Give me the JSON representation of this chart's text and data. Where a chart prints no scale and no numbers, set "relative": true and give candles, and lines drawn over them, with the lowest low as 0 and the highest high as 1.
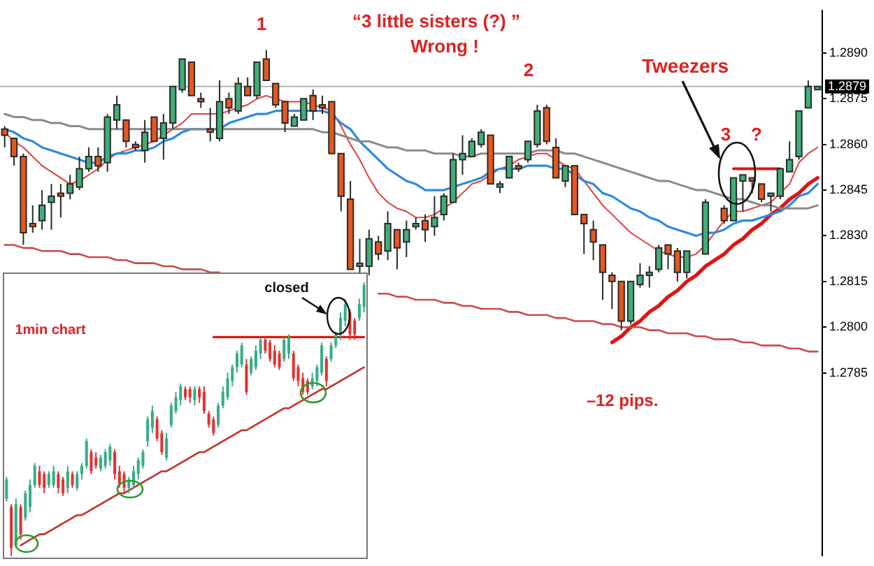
{
  "chart_data": [
    {
      "type": "candlestick",
      "categories": [
        null,
        null,
        null,
        null,
        null,
        null,
        null,
        null,
        null,
        null,
        null,
        null,
        null,
        null,
        null,
        null,
        null,
        null,
        null,
        null,
        null,
        null,
        null,
        null,
        null,
        null,
        null,
        null,
        null,
        null,
        null,
        null,
        null,
        null,
        null,
        null,
        null,
        null,
        null,
        null,
        null,
        null,
        null,
        null,
        null,
        null,
        null,
        null,
        null,
        null,
        null,
        null,
        null,
        null,
        null,
        null,
        null,
        null,
        null,
        null,
        null,
        null,
        null,
        null,
        null,
        null,
        null,
        null,
        null,
        null,
        null,
        null,
        null,
        null,
        null,
        null,
        null,
        null,
        null,
        null,
        null,
        null,
        null,
        null,
        null,
        null,
        null,
        null
      ],
      "colors": [
        "#e8571e",
        "#e8571e",
        "#e8571e",
        "#e8571e",
        "#3fae78",
        "#3fae78",
        "#e8571e",
        "#3fae78",
        "#3fae78",
        "#3fae78",
        "#e8571e",
        "#3fae78",
        "#3fae78",
        "#e8571e",
        "#e8571e",
        "#3fae78",
        "#e8571e",
        "#3fae78",
        "#3fae78",
        "#3fae78",
        "#e8571e",
        "#e8571e",
        "#e8571e",
        "#3fae78",
        "#e8571e",
        "#3fae78",
        "#e8571e",
        "#3fae78",
        "#e8571e",
        "#e8571e",
        "#e8571e",
        "#3fae78",
        "#3fae78",
        "#e8571e",
        "#e8571e",
        "#e8571e",
        "#e8571e",
        "#e8571e",
        "#3fae78",
        "#3fae78",
        "#e8571e",
        "#3fae78",
        "#e8571e",
        "#3fae78",
        "#3fae78",
        "#e8571e",
        "#3fae78",
        "#3fae78",
        "#3fae78",
        "#3fae78",
        "#3fae78",
        "#3fae78",
        "#e8571e",
        "#3fae78",
        "#3fae78",
        "#e8571e",
        "#3fae78",
        "#3fae78",
        "#e8571e",
        "#e8571e",
        "#3fae78",
        "#e8571e",
        "#e8571e",
        "#e8571e",
        "#e8571e",
        "#e8571e",
        "#e8571e",
        "#3fae78",
        "#3fae78",
        "#3fae78",
        "#3fae78",
        "#e8571e",
        "#e8571e",
        "#3fae78",
        null,
        "#3fae78",
        null,
        "#e8571e",
        "#3fae78",
        "#3fae78",
        "#e8571e",
        "#e8571e",
        "#3fae78",
        "#3fae78",
        "#3fae78",
        "#3fae78",
        "#3fae78",
        "#3fae78"
      ],
      "ohlc": [
        [
          1.2865,
          1.2866,
          1.2859,
          1.2863
        ],
        [
          1.2862,
          1.2862,
          1.2853,
          1.2856
        ],
        [
          1.2856,
          1.2857,
          1.2827,
          1.2831
        ],
        [
          1.2834,
          1.284,
          1.2831,
          1.2833
        ],
        [
          1.2835,
          1.2845,
          1.2832,
          1.284
        ],
        [
          1.2841,
          1.2847,
          1.2832,
          1.2843
        ],
        [
          1.2844,
          1.2847,
          1.2836,
          1.2843
        ],
        [
          1.2844,
          1.285,
          1.2842,
          1.2847
        ],
        [
          1.2846,
          1.2856,
          1.2845,
          1.2852
        ],
        [
          1.2852,
          1.2859,
          1.2851,
          1.2856
        ],
        [
          1.2856,
          1.2859,
          1.2851,
          1.2853
        ],
        [
          1.2854,
          1.287,
          1.2851,
          1.2869
        ],
        [
          1.2868,
          1.2876,
          1.2865,
          1.2873
        ],
        [
          1.2868,
          1.2868,
          1.2859,
          1.2861
        ],
        [
          1.286,
          1.2861,
          1.2858,
          1.2859
        ],
        [
          1.2858,
          1.2868,
          1.2854,
          1.2864
        ],
        [
          1.2869,
          1.2869,
          1.2861,
          1.2861
        ],
        [
          1.2862,
          1.287,
          1.2855,
          1.2867
        ],
        [
          1.2867,
          1.2879,
          1.2865,
          1.2879
        ],
        [
          1.2878,
          1.2888,
          1.2877,
          1.2888
        ],
        [
          1.2887,
          1.2887,
          1.2876,
          1.2876
        ],
        [
          1.2875,
          1.2877,
          1.2872,
          1.2874
        ],
        [
          1.2865,
          1.2872,
          1.2861,
          1.2864
        ],
        [
          1.2862,
          1.2881,
          1.2861,
          1.2874
        ],
        [
          1.2875,
          1.2877,
          1.287,
          1.2872
        ],
        [
          1.2871,
          1.2882,
          1.287,
          1.288
        ],
        [
          1.2879,
          1.2882,
          1.2876,
          1.2876
        ],
        [
          1.2876,
          1.2887,
          1.2875,
          1.2887
        ],
        [
          1.2888,
          1.2891,
          1.2881,
          1.2881
        ],
        [
          1.288,
          1.288,
          1.2872,
          1.2873
        ],
        [
          1.2874,
          1.2874,
          1.2864,
          1.2867
        ],
        [
          1.2866,
          1.287,
          1.2866,
          1.2869
        ],
        [
          1.2868,
          1.2875,
          1.2868,
          1.2875
        ],
        [
          1.2876,
          1.2878,
          1.2868,
          1.2871
        ],
        [
          1.2873,
          1.2876,
          1.287,
          1.2872
        ],
        [
          1.2874,
          1.2874,
          1.2857,
          1.2857
        ],
        [
          1.2857,
          1.2857,
          1.2838,
          1.2843
        ],
        [
          1.2842,
          1.2848,
          1.2819,
          1.2819
        ],
        [
          1.282,
          1.2829,
          1.2817,
          1.2821
        ],
        [
          1.282,
          1.2832,
          1.2817,
          1.2829
        ],
        [
          1.2828,
          1.283,
          1.2822,
          1.2824
        ],
        [
          1.2825,
          1.2838,
          1.2822,
          1.2834
        ],
        [
          1.2832,
          1.2832,
          1.2819,
          1.2826
        ],
        [
          1.2828,
          1.2835,
          1.2823,
          1.2832
        ],
        [
          1.2833,
          1.2836,
          1.2832,
          1.2834
        ],
        [
          1.2835,
          1.2837,
          1.2828,
          1.2832
        ],
        [
          1.2833,
          1.2843,
          1.283,
          1.2836
        ],
        [
          1.2837,
          1.2844,
          1.2835,
          1.2843
        ],
        [
          1.2841,
          1.2857,
          1.2841,
          1.2855
        ],
        [
          1.2855,
          1.2863,
          1.285,
          1.2857
        ],
        [
          1.2856,
          1.2862,
          1.2856,
          1.2861
        ],
        [
          1.286,
          1.2865,
          1.2859,
          1.2864
        ],
        [
          1.2863,
          1.2863,
          1.2847,
          1.2847
        ],
        [
          1.2846,
          1.2848,
          1.2844,
          1.2847
        ],
        [
          1.2849,
          1.2856,
          1.2849,
          1.2856
        ],
        [
          1.2853,
          1.2854,
          1.2851,
          1.2852
        ],
        [
          1.2855,
          1.2861,
          1.2854,
          1.2861
        ],
        [
          1.286,
          1.2873,
          1.2859,
          1.2871
        ],
        [
          1.2872,
          1.2873,
          1.286,
          1.2861
        ],
        [
          1.2859,
          1.2862,
          1.2849,
          1.2849
        ],
        [
          1.2848,
          1.2853,
          1.2846,
          1.2853
        ],
        [
          1.2853,
          1.2853,
          1.2837,
          1.2837
        ],
        [
          1.2837,
          1.2837,
          1.2824,
          1.2834
        ],
        [
          1.2832,
          1.2835,
          1.2822,
          1.2828
        ],
        [
          1.2827,
          1.2827,
          1.2809,
          1.2818
        ],
        [
          1.2817,
          1.2818,
          1.2806,
          1.2815
        ],
        [
          1.2815,
          1.2815,
          1.2799,
          1.2802
        ],
        [
          1.2802,
          1.2815,
          1.2801,
          1.2815
        ],
        [
          1.2814,
          1.2821,
          1.2813,
          1.2817
        ],
        [
          1.2817,
          1.282,
          1.2813,
          1.2818
        ],
        [
          1.2819,
          1.2827,
          1.2818,
          1.2826
        ],
        [
          1.2827,
          1.2827,
          1.2819,
          1.2824
        ],
        [
          1.2825,
          1.2826,
          1.2815,
          1.2818
        ],
        [
          1.2818,
          1.2825,
          1.2816,
          1.2825
        ],
        null,
        [
          1.2824,
          1.2842,
          1.2824,
          1.2841
        ],
        null,
        [
          1.2839,
          1.284,
          1.2834,
          1.2835
        ],
        [
          1.2835,
          1.2849,
          1.2835,
          1.2849
        ],
        [
          1.2848,
          1.285,
          1.2838,
          1.285
        ],
        [
          1.2849,
          1.2849,
          1.2844,
          1.2848
        ],
        [
          1.2847,
          1.2847,
          1.2841,
          1.2842
        ],
        [
          1.2843,
          1.2844,
          1.2838,
          1.2844
        ],
        [
          1.2843,
          1.2852,
          1.2842,
          1.2852
        ],
        [
          1.2851,
          1.2861,
          1.2851,
          1.2855
        ],
        [
          1.2856,
          1.2871,
          1.2855,
          1.2871
        ],
        [
          1.2872,
          1.2881,
          1.2872,
          1.2879
        ],
        [
          1.2878,
          1.2879,
          1.2878,
          1.2879
        ]
      ],
      "series": [
        {
          "type": "line",
          "color": "#8a8a8a",
          "values": [
            1.287,
            1.2869,
            1.2869,
            1.2868,
            1.2868,
            1.2867,
            1.2867,
            1.2866,
            1.2866,
            1.2865,
            1.2865,
            1.2865,
            1.2865,
            1.2865,
            1.2865,
            1.2865,
            1.2865,
            1.2865,
            1.2865,
            1.2865,
            1.2865,
            1.2865,
            1.2865,
            1.2865,
            1.2865,
            1.2865,
            1.2865,
            1.2865,
            1.2865,
            1.2865,
            1.2865,
            1.2865,
            1.2865,
            1.2865,
            1.2864,
            1.2864,
            1.2863,
            1.2862,
            1.2861,
            1.2861,
            1.286,
            1.2859,
            1.2859,
            1.2858,
            1.2858,
            1.2858,
            1.2857,
            1.2857,
            1.2857,
            1.2856,
            1.2856,
            1.2857,
            1.2857,
            1.2857,
            1.2857,
            1.2857,
            1.2857,
            1.2858,
            1.2858,
            1.2858,
            1.2857,
            1.2857,
            1.2856,
            1.2855,
            1.2854,
            1.2853,
            1.2852,
            1.2851,
            1.285,
            1.2849,
            1.2848,
            1.2848,
            1.2847,
            1.2846,
            1.2845,
            1.2845,
            1.2844,
            1.2843,
            1.2842,
            1.2842,
            1.2841,
            1.284,
            1.284,
            1.2839,
            1.2839,
            1.2839,
            1.2839,
            1.284
          ]
        },
        {
          "type": "line",
          "color": "#2b8ae2",
          "values": [
            1.2865,
            1.2864,
            1.2862,
            1.2861,
            1.2859,
            1.2858,
            1.2857,
            1.2856,
            1.2855,
            1.2854,
            1.2854,
            1.2856,
            1.2857,
            1.2857,
            1.2858,
            1.2858,
            1.2859,
            1.2861,
            1.2862,
            1.2864,
            1.2865,
            1.2865,
            1.2865,
            1.2865,
            1.2867,
            1.2868,
            1.2869,
            1.287,
            1.287,
            1.2871,
            1.2871,
            1.2871,
            1.2871,
            1.2871,
            1.2871,
            1.287,
            1.2867,
            1.2865,
            1.2861,
            1.2858,
            1.2855,
            1.2852,
            1.285,
            1.2848,
            1.2847,
            1.2845,
            1.2845,
            1.2845,
            1.2846,
            1.2847,
            1.2848,
            1.2849,
            1.2851,
            1.2852,
            1.2852,
            1.2852,
            1.2853,
            1.2853,
            1.2853,
            1.2852,
            1.2852,
            1.285,
            1.2848,
            1.2847,
            1.2844,
            1.2843,
            1.2841,
            1.2839,
            1.2838,
            1.2836,
            1.2835,
            1.2833,
            1.2832,
            1.2831,
            1.283,
            1.2831,
            1.2831,
            1.2832,
            1.2834,
            1.2835,
            1.2835,
            1.2836,
            1.2837,
            1.2838,
            1.284,
            1.2843,
            1.2844,
            1.2847
          ]
        },
        {
          "type": "line",
          "color": "#e0403a",
          "values": [
            1.2864,
            1.2861,
            1.2859,
            1.2856,
            1.2853,
            1.2851,
            1.2849,
            1.2847,
            1.2848,
            1.285,
            1.2852,
            1.2855,
            1.2857,
            1.2858,
            1.2859,
            1.286,
            1.2861,
            1.2863,
            1.2865,
            1.2867,
            1.287,
            1.287,
            1.287,
            1.287,
            1.2871,
            1.2872,
            1.2873,
            1.2875,
            1.2876,
            1.2875,
            1.2874,
            1.2874,
            1.2874,
            1.2873,
            1.2872,
            1.2871,
            1.2866,
            1.286,
            1.2855,
            1.2849,
            1.2844,
            1.2841,
            1.2839,
            1.2838,
            1.2836,
            1.2836,
            1.2837,
            1.2839,
            1.2841,
            1.2844,
            1.2847,
            1.2848,
            1.285,
            1.2852,
            1.2853,
            1.2855,
            1.2856,
            1.2857,
            1.2857,
            1.2855,
            1.2853,
            1.2852,
            1.2848,
            1.2844,
            1.284,
            1.2837,
            1.2834,
            1.2831,
            1.2829,
            1.2827,
            1.2825,
            1.2824,
            1.2823,
            1.2823,
            1.2824,
            1.2827,
            1.2831,
            1.2835,
            1.2838,
            1.2838,
            1.2839,
            1.284,
            1.2841,
            1.2844,
            1.2847,
            1.2854,
            1.2857,
            1.2859
          ]
        },
        {
          "type": "line",
          "color": "#cc4a4a",
          "values": [
            1.2827,
            1.2827,
            1.2826,
            1.2826,
            1.2825,
            1.2825,
            1.2825,
            1.2824,
            1.2824,
            1.2823,
            1.2823,
            1.2823,
            1.2822,
            1.2822,
            1.2821,
            1.2821,
            1.2821,
            1.282,
            1.282,
            1.2819,
            1.2819,
            1.2819,
            1.2818,
            1.2818,
            null,
            null,
            null,
            null,
            null,
            null,
            null,
            null,
            null,
            null,
            null,
            null,
            null,
            null,
            null,
            null,
            1.2811,
            1.2811,
            1.281,
            1.281,
            1.2809,
            1.2809,
            1.2809,
            1.2808,
            1.2808,
            1.2807,
            1.2807,
            1.2806,
            1.2806,
            1.2806,
            1.2805,
            1.2805,
            1.2804,
            1.2804,
            1.2804,
            1.2803,
            1.2803,
            1.2802,
            1.2802,
            1.2802,
            1.2801,
            1.2801,
            1.28,
            1.28,
            1.28,
            1.2799,
            1.2799,
            1.2798,
            1.2798,
            1.2798,
            1.2797,
            1.2797,
            1.2796,
            1.2796,
            1.2796,
            1.2795,
            1.2795,
            1.2794,
            1.2794,
            1.2794,
            1.2793,
            1.2793,
            1.2792,
            1.2792
          ]
        },
        {
          "type": "line",
          "color": "#e01414",
          "values": [
            null,
            null,
            null,
            null,
            null,
            null,
            null,
            null,
            null,
            null,
            null,
            null,
            null,
            null,
            null,
            null,
            null,
            null,
            null,
            null,
            null,
            null,
            null,
            null,
            null,
            null,
            null,
            null,
            null,
            null,
            null,
            null,
            null,
            null,
            null,
            null,
            null,
            null,
            null,
            null,
            null,
            null,
            null,
            null,
            null,
            null,
            null,
            null,
            null,
            null,
            null,
            null,
            null,
            null,
            null,
            null,
            null,
            null,
            null,
            null,
            null,
            null,
            null,
            null,
            null,
            1.2795,
            1.2797,
            1.28,
            1.2802,
            1.2805,
            1.2807,
            1.281,
            1.2812,
            1.2815,
            1.2817,
            1.282,
            1.2822,
            1.2824,
            1.2827,
            1.2829,
            1.2832,
            1.2834,
            1.2837,
            1.2839,
            1.2842,
            1.2844,
            1.2847,
            1.2849
          ]
        },
        {
          "type": "line",
          "color": "#e01414",
          "values": [
            null,
            null,
            null,
            null,
            null,
            null,
            null,
            null,
            null,
            null,
            null,
            null,
            null,
            null,
            null,
            null,
            null,
            null,
            null,
            null,
            null,
            null,
            null,
            null,
            null,
            null,
            null,
            null,
            null,
            null,
            null,
            null,
            null,
            null,
            null,
            null,
            null,
            null,
            null,
            null,
            null,
            null,
            null,
            null,
            null,
            null,
            null,
            null,
            null,
            null,
            null,
            null,
            null,
            null,
            null,
            null,
            null,
            null,
            null,
            null,
            null,
            null,
            null,
            null,
            null,
            null,
            null,
            null,
            null,
            null,
            null,
            null,
            null,
            null,
            null,
            null,
            null,
            null,
            1.2852,
            1.2852,
            1.2852,
            1.2852,
            1.2852,
            1.2852,
            null,
            null,
            null,
            null
          ]
        }
      ],
      "ylim": [
        1.2725,
        1.2904
      ],
      "yticks": [
        {
          "value": 1.2785,
          "label": "1.2785"
        },
        {
          "value": 1.28,
          "label": "1.2800"
        },
        {
          "value": 1.2815,
          "label": "1.2815"
        },
        {
          "value": 1.283,
          "label": "1.2830"
        },
        {
          "value": 1.2845,
          "label": "1.2845"
        },
        {
          "value": 1.286,
          "label": "1.2860"
        },
        {
          "value": 1.2875,
          "label": "1.2875"
        },
        {
          "value": 1.289,
          "label": "1.2890"
        }
      ],
      "ref_lines": [
        {
          "axis": "y",
          "value": 1.2879,
          "label": "1.2879",
          "color": "#b4b4b4"
        }
      ],
      "tick_labels": "y",
      "annotations": [
        "1",
        "“3 little sisters (?) ”",
        "Wrong !",
        "2",
        "Tweezers",
        "3",
        "?",
        "–12 pips."
      ]
    },
    {
      "type": "candlestick",
      "relative": true,
      "categories": [
        null,
        null,
        null,
        null,
        null,
        null,
        null,
        null,
        null,
        null,
        null,
        null,
        null,
        null,
        null,
        null,
        null,
        null,
        null,
        null,
        null,
        null,
        null,
        null,
        null,
        null,
        null,
        null,
        null,
        null,
        null,
        null,
        null,
        null,
        null,
        null,
        null,
        null,
        null,
        null,
        null,
        null,
        null,
        null,
        null,
        null,
        null,
        null,
        null,
        null,
        null,
        null,
        null,
        null,
        null,
        null,
        null,
        null,
        null,
        null,
        null,
        null,
        null,
        null,
        null,
        null,
        null,
        null,
        null,
        null,
        null,
        null,
        null,
        null,
        null,
        null,
        null
      ],
      "colors": [
        "#35ad86",
        "#e23232",
        "#35ad86",
        "#e23232",
        "#35ad86",
        "#35ad86",
        "#35ad86",
        "#e23232",
        "#e23232",
        "#35ad86",
        "#35ad86",
        "#e23232",
        "#e23232",
        "#35ad86",
        "#e23232",
        "#35ad86",
        "#35ad86",
        "#35ad86",
        "#e23232",
        "#e23232",
        "#35ad86",
        "#35ad86",
        "#35ad86",
        "#e23232",
        "#e23232",
        "#e23232",
        "#35ad86",
        "#35ad86",
        "#35ad86",
        "#35ad86",
        "#35ad86",
        "#35ad86",
        "#e23232",
        "#e23232",
        "#35ad86",
        "#35ad86",
        "#35ad86",
        "#35ad86",
        "#e23232",
        "#e23232",
        "#35ad86",
        "#e23232",
        "#e23232",
        "#e23232",
        "#e23232",
        "#35ad86",
        "#35ad86",
        "#35ad86",
        "#35ad86",
        "#35ad86",
        "#35ad86",
        "#e23232",
        "#35ad86",
        "#35ad86",
        "#35ad86",
        "#e23232",
        "#e23232",
        "#e23232",
        "#e23232",
        "#35ad86",
        "#35ad86",
        "#e23232",
        "#e23232",
        "#e23232",
        "#e23232",
        "#35ad86",
        "#35ad86",
        "#35ad86",
        "#e23232",
        "#35ad86",
        "#35ad86",
        "#35ad86",
        "#35ad86",
        "#e23232",
        "#e23232",
        "#35ad86",
        "#35ad86"
      ],
      "ohlc": [
        [
          0.21,
          0.29,
          0.2,
          0.28
        ],
        [
          0.18,
          0.19,
          0,
          0.03
        ],
        [
          0.04,
          0.21,
          0.03,
          0.19
        ],
        [
          0.18,
          0.19,
          0.06,
          0.08
        ],
        [
          0.14,
          0.24,
          0.13,
          0.23
        ],
        [
          0.18,
          0.28,
          0.16,
          0.26
        ],
        [
          0.26,
          0.34,
          0.25,
          0.33
        ],
        [
          0.31,
          0.33,
          0.25,
          0.26
        ],
        [
          0.3,
          0.31,
          0.23,
          0.25
        ],
        [
          0.26,
          0.31,
          0.25,
          0.3
        ],
        [
          0.26,
          0.33,
          0.25,
          0.31
        ],
        [
          0.3,
          0.31,
          0.23,
          0.25
        ],
        [
          0.28,
          0.29,
          0.22,
          0.23
        ],
        [
          0.25,
          0.33,
          0.23,
          0.31
        ],
        [
          0.3,
          0.31,
          0.25,
          0.26
        ],
        [
          0.25,
          0.31,
          0.24,
          0.3
        ],
        [
          0.3,
          0.34,
          0.28,
          0.33
        ],
        [
          0.33,
          0.43,
          0.32,
          0.42
        ],
        [
          0.38,
          0.39,
          0.3,
          0.31
        ],
        [
          0.36,
          0.38,
          0.32,
          0.33
        ],
        [
          0.32,
          0.37,
          0.31,
          0.36
        ],
        [
          0.33,
          0.39,
          0.32,
          0.38
        ],
        [
          0.35,
          0.41,
          0.33,
          0.4
        ],
        [
          0.38,
          0.39,
          0.28,
          0.3
        ],
        [
          0.31,
          0.33,
          0.25,
          0.26
        ],
        [
          0.3,
          0.31,
          0.23,
          0.25
        ],
        [
          0.25,
          0.29,
          0.23,
          0.28
        ],
        [
          0.26,
          0.33,
          0.25,
          0.31
        ],
        [
          0.3,
          0.36,
          0.28,
          0.35
        ],
        [
          0.33,
          0.39,
          0.32,
          0.38
        ],
        [
          0.42,
          0.51,
          0.4,
          0.5
        ],
        [
          0.47,
          0.55,
          0.45,
          0.53
        ],
        [
          0.5,
          0.51,
          0.42,
          0.43
        ],
        [
          0.45,
          0.46,
          0.37,
          0.38
        ],
        [
          0.36,
          0.45,
          0.35,
          0.43
        ],
        [
          0.48,
          0.56,
          0.47,
          0.55
        ],
        [
          0.53,
          0.6,
          0.52,
          0.58
        ],
        [
          0.57,
          0.63,
          0.55,
          0.62
        ],
        [
          0.61,
          0.62,
          0.57,
          0.58
        ],
        [
          0.61,
          0.62,
          0.56,
          0.58
        ],
        [
          0.57,
          0.62,
          0.55,
          0.61
        ],
        [
          0.61,
          0.62,
          0.56,
          0.58
        ],
        [
          0.6,
          0.62,
          0.52,
          0.53
        ],
        [
          0.52,
          0.53,
          0.47,
          0.48
        ],
        [
          0.5,
          0.51,
          0.44,
          0.45
        ],
        [
          0.48,
          0.56,
          0.47,
          0.55
        ],
        [
          0.55,
          0.62,
          0.54,
          0.6
        ],
        [
          0.58,
          0.67,
          0.57,
          0.65
        ],
        [
          0.64,
          0.7,
          0.62,
          0.69
        ],
        [
          0.69,
          0.75,
          0.67,
          0.74
        ],
        [
          0.7,
          0.78,
          0.69,
          0.77
        ],
        [
          0.7,
          0.72,
          0.59,
          0.6
        ],
        [
          0.67,
          0.73,
          0.66,
          0.72
        ],
        [
          0.69,
          0.77,
          0.68,
          0.75
        ],
        [
          0.74,
          0.8,
          0.72,
          0.79
        ],
        [
          0.79,
          0.8,
          0.74,
          0.75
        ],
        [
          0.78,
          0.79,
          0.71,
          0.72
        ],
        [
          0.75,
          0.77,
          0.69,
          0.7
        ],
        [
          0.74,
          0.75,
          0.68,
          0.69
        ],
        [
          0.72,
          0.8,
          0.71,
          0.79
        ],
        [
          0.74,
          0.81,
          0.72,
          0.8
        ],
        [
          0.74,
          0.75,
          0.64,
          0.65
        ],
        [
          0.69,
          0.7,
          0.62,
          0.64
        ],
        [
          0.65,
          0.67,
          0.59,
          0.6
        ],
        [
          0.64,
          0.65,
          0.59,
          0.6
        ],
        [
          0.62,
          0.67,
          0.61,
          0.65
        ],
        [
          0.64,
          0.7,
          0.62,
          0.69
        ],
        [
          0.67,
          0.78,
          0.66,
          0.77
        ],
        [
          0.72,
          0.73,
          0.62,
          0.64
        ],
        [
          0.72,
          0.78,
          0.71,
          0.77
        ],
        [
          0.77,
          0.82,
          0.76,
          0.81
        ],
        [
          0.81,
          0.89,
          0.79,
          0.87
        ],
        [
          0.86,
          0.94,
          0.84,
          0.92
        ],
        [
          0.89,
          0.9,
          0.79,
          0.81
        ],
        [
          0.86,
          0.87,
          0.79,
          0.81
        ],
        [
          0.87,
          0.94,
          0.86,
          0.92
        ],
        [
          0.91,
          1,
          0.89,
          0.99
        ]
      ],
      "series": [
        {
          "type": "line",
          "color": "#c4302a",
          "values": [
            null,
            null,
            null,
            0.04,
            0.05,
            0.06,
            0.07,
            0.08,
            0.08,
            0.09,
            0.1,
            0.11,
            0.12,
            0.13,
            0.14,
            0.15,
            0.15,
            0.16,
            0.17,
            0.18,
            0.19,
            0.2,
            0.21,
            0.22,
            0.23,
            0.23,
            0.24,
            0.25,
            0.26,
            0.27,
            0.28,
            0.29,
            0.3,
            0.31,
            0.31,
            0.32,
            0.33,
            0.34,
            0.35,
            0.36,
            0.37,
            0.38,
            0.38,
            0.39,
            0.4,
            0.41,
            0.42,
            0.43,
            0.44,
            0.45,
            0.46,
            0.46,
            0.47,
            0.48,
            0.49,
            0.5,
            0.51,
            0.52,
            0.53,
            0.54,
            0.54,
            0.55,
            0.56,
            0.57,
            0.58,
            0.59,
            0.6,
            0.61,
            0.61,
            0.62,
            0.63,
            0.64,
            0.65,
            0.66,
            0.67,
            0.68,
            0.69
          ]
        },
        {
          "type": "line",
          "color": "#e01414",
          "values": [
            null,
            null,
            null,
            null,
            null,
            null,
            null,
            null,
            null,
            null,
            null,
            null,
            null,
            null,
            null,
            null,
            null,
            null,
            null,
            null,
            null,
            null,
            null,
            null,
            null,
            null,
            null,
            null,
            null,
            null,
            null,
            null,
            null,
            null,
            null,
            null,
            null,
            null,
            null,
            null,
            null,
            null,
            null,
            null,
            0.8,
            0.8,
            0.8,
            0.8,
            0.8,
            0.8,
            0.8,
            0.8,
            0.8,
            0.8,
            0.8,
            0.8,
            0.8,
            0.8,
            0.8,
            0.8,
            0.8,
            0.8,
            0.8,
            0.8,
            0.8,
            0.8,
            0.8,
            0.8,
            0.8,
            0.8,
            0.8,
            0.8,
            0.8,
            0.8,
            0.8,
            0.8,
            0.8
          ]
        }
      ],
      "tick_labels": false,
      "annotations": [
        "1min chart",
        "closed"
      ]
    }
  ]
}
